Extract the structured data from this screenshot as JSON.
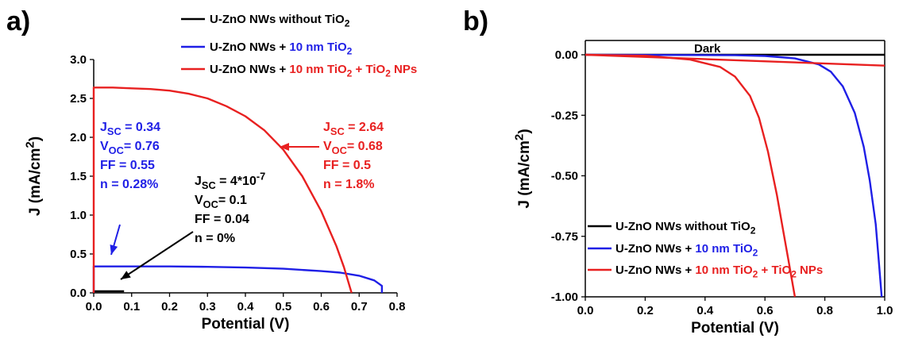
{
  "colors": {
    "black": "#000000",
    "blue": "#1f1fe6",
    "red": "#e82020"
  },
  "legend": [
    {
      "prefix": "U-ZnO NWs without TiO",
      "sub": "2",
      "color_key": "black",
      "rest": []
    },
    {
      "prefix": "U-ZnO NWs + ",
      "sub": "",
      "color_key": "blue",
      "rest": [
        {
          "t": "10 nm TiO",
          "c": "blue"
        },
        {
          "t": "2",
          "c": "blue",
          "sub": true
        }
      ]
    },
    {
      "prefix": "U-ZnO NWs + ",
      "sub": "",
      "color_key": "red",
      "rest": [
        {
          "t": "10 nm TiO",
          "c": "red"
        },
        {
          "t": "2",
          "c": "red",
          "sub": true
        },
        {
          "t": " + TiO",
          "c": "red"
        },
        {
          "t": "2",
          "c": "red",
          "sub": true
        },
        {
          "t": " NPs",
          "c": "red"
        }
      ]
    }
  ],
  "chart_data": [
    {
      "panel_label": "a)",
      "type": "line",
      "xlabel": "Potential (V)",
      "ylabel": "J (mA/cm2)",
      "xlim": [
        0,
        0.8
      ],
      "ylim": [
        0,
        3.0
      ],
      "x_ticks": [
        "0.0",
        "0.1",
        "0.2",
        "0.3",
        "0.4",
        "0.5",
        "0.6",
        "0.7",
        "0.8"
      ],
      "y_ticks": [
        "0.0",
        "0.5",
        "1.0",
        "1.5",
        "2.0",
        "2.5",
        "3.0"
      ],
      "grid": false,
      "legend_position": "top",
      "series": [
        {
          "name": "U-ZnO NWs without TiO2",
          "color": "#000000",
          "x": [
            0,
            0.0,
            0.02,
            0.08
          ],
          "y": [
            0.0,
            0.02,
            0.02,
            0.02
          ]
        },
        {
          "name": "U-ZnO NWs + 10 nm TiO2",
          "color": "#1f1fe6",
          "x": [
            0,
            0.0,
            0.05,
            0.1,
            0.2,
            0.3,
            0.4,
            0.5,
            0.6,
            0.65,
            0.7,
            0.74,
            0.76,
            0.76
          ],
          "y": [
            0.0,
            0.34,
            0.34,
            0.34,
            0.34,
            0.335,
            0.325,
            0.31,
            0.28,
            0.26,
            0.22,
            0.16,
            0.09,
            0.0
          ]
        },
        {
          "name": "U-ZnO NWs + 10 nm TiO2 + TiO2 NPs",
          "color": "#e82020",
          "x": [
            0,
            0.0,
            0.05,
            0.1,
            0.15,
            0.2,
            0.25,
            0.3,
            0.35,
            0.4,
            0.45,
            0.5,
            0.55,
            0.6,
            0.64,
            0.66,
            0.68
          ],
          "y": [
            0.0,
            2.64,
            2.64,
            2.63,
            2.62,
            2.6,
            2.56,
            2.5,
            2.4,
            2.27,
            2.09,
            1.84,
            1.5,
            1.05,
            0.6,
            0.33,
            0.0
          ]
        }
      ],
      "annotations": [
        {
          "color": "blue",
          "lines": [
            "JSC = 0.34",
            "VOC= 0.76",
            "FF = 0.55",
            "n = 0.28%"
          ]
        },
        {
          "color": "red",
          "lines": [
            "JSC = 2.64",
            "VOC= 0.68",
            "FF = 0.5",
            "n = 1.8%"
          ]
        },
        {
          "color": "black",
          "lines": [
            "JSC = 4*10-7",
            "VOC= 0.1",
            "FF = 0.04",
            "n = 0%"
          ]
        }
      ]
    },
    {
      "panel_label": "b)",
      "type": "line",
      "xlabel": "Potential (V)",
      "ylabel": "J (mA/cm2)",
      "xlim": [
        0,
        1.0
      ],
      "ylim": [
        -1.0,
        0.05
      ],
      "x_ticks": [
        "0.0",
        "0.2",
        "0.4",
        "0.6",
        "0.8",
        "1.0"
      ],
      "y_ticks": [
        "0.00",
        "-0.25",
        "-0.50",
        "-0.75",
        "-1.00"
      ],
      "grid": false,
      "legend_position": "bottom-left",
      "series": [
        {
          "name": "U-ZnO NWs without TiO2",
          "color": "#000000",
          "x": [
            0,
            1.0
          ],
          "y": [
            0,
            0
          ]
        },
        {
          "name": "U-ZnO NWs + 10 nm TiO2",
          "color": "#1f1fe6",
          "x": [
            0,
            0.5,
            0.6,
            0.7,
            0.78,
            0.82,
            0.86,
            0.9,
            0.93,
            0.95,
            0.97,
            0.98,
            0.99
          ],
          "y": [
            0,
            -0.002,
            -0.005,
            -0.015,
            -0.04,
            -0.07,
            -0.13,
            -0.24,
            -0.38,
            -0.52,
            -0.7,
            -0.85,
            -1.0
          ]
        },
        {
          "name": "U-ZnO NWs + 10 nm TiO2 + TiO2 NPs",
          "color": "#e82020",
          "x": [
            0,
            0.2,
            0.35,
            0.45,
            0.5,
            0.55,
            0.58,
            0.61,
            0.64,
            0.66,
            0.68,
            0.7
          ],
          "y": [
            0,
            -0.004,
            -0.02,
            -0.05,
            -0.09,
            -0.17,
            -0.26,
            -0.4,
            -0.58,
            -0.72,
            -0.86,
            -1.0
          ]
        },
        {
          "name": "Dark",
          "color": "#e82020",
          "x": [
            0,
            1.0
          ],
          "y": [
            0,
            -0.045
          ]
        }
      ],
      "annotations": [
        {
          "color": "black",
          "lines": [
            "Dark"
          ]
        }
      ]
    }
  ]
}
